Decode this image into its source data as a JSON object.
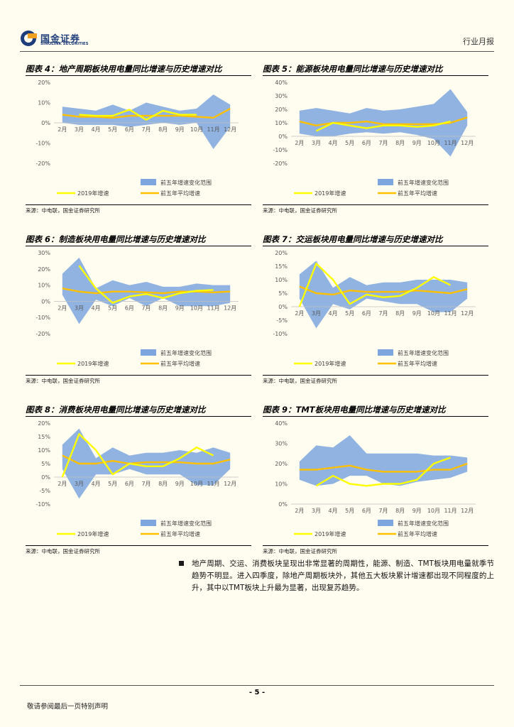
{
  "header": {
    "logo_cn": "国金证券",
    "logo_en": "SINOLINK SECURITIES",
    "report_type": "行业月报"
  },
  "legend": {
    "range": "前五年增速变化范围",
    "current": "2019年增速",
    "avg": "前五年平均增速"
  },
  "colors": {
    "range_fill": "#7ea6de",
    "current_line": "#ffff00",
    "avg_line": "#ffc000"
  },
  "charts": [
    {
      "title": "图表 4：地产周期板块用电量同比增速与历史增速对比",
      "source": "来源：中电联，国金证券研究所",
      "chart_data": {
        "type": "area",
        "categories": [
          "2月",
          "3月",
          "4月",
          "5月",
          "6月",
          "7月",
          "8月",
          "9月",
          "10月",
          "11月",
          "12月"
        ],
        "ylim": [
          -20,
          20
        ],
        "y_ticks": [
          -20,
          -10,
          0,
          10,
          20
        ],
        "tick_format": "percent",
        "range_max": [
          8,
          7,
          6,
          9,
          6,
          10,
          8,
          6,
          7,
          14,
          9
        ],
        "range_min": [
          0,
          -1,
          -1,
          -1,
          -2,
          -1,
          0,
          -1,
          0,
          -13,
          -2
        ],
        "current": [
          null,
          4,
          3.5,
          3.5,
          6.5,
          1.5,
          6,
          4,
          4,
          null,
          null
        ],
        "avg": [
          4,
          3,
          3,
          2.5,
          3.5,
          3.5,
          3.5,
          3.5,
          3,
          2.5,
          7
        ]
      }
    },
    {
      "title": "图表 5：能源板块用电量同比增速与历史增速对比",
      "source": "来源：中电联，国金证券研究所",
      "chart_data": {
        "type": "area",
        "categories": [
          "2月",
          "3月",
          "4月",
          "5月",
          "6月",
          "7月",
          "8月",
          "9月",
          "10月",
          "11月",
          "12月"
        ],
        "ylim": [
          -20,
          40
        ],
        "y_ticks": [
          -20,
          -10,
          0,
          10,
          20,
          30,
          40
        ],
        "tick_format": "percent",
        "range_max": [
          19,
          21,
          19,
          17,
          21,
          19,
          20,
          22,
          24,
          35,
          18
        ],
        "range_min": [
          2,
          0,
          0,
          2,
          3,
          2,
          3,
          1,
          -2,
          -15,
          8
        ],
        "current": [
          null,
          4,
          10,
          8,
          6,
          8,
          8,
          7,
          8,
          11,
          null
        ],
        "avg": [
          11,
          8,
          10,
          10,
          11,
          9,
          9,
          9,
          9,
          10,
          14
        ]
      }
    },
    {
      "title": "图表 6：制造板块用电量同比增速与历史增速对比",
      "source": "来源：中电联，国金证券研究所",
      "chart_data": {
        "type": "area",
        "categories": [
          "2月",
          "3月",
          "4月",
          "5月",
          "6月",
          "7月",
          "8月",
          "9月",
          "10月",
          "11月",
          "12月"
        ],
        "ylim": [
          -20,
          30
        ],
        "y_ticks": [
          -20,
          -10,
          0,
          10,
          20,
          30
        ],
        "tick_format": "percent",
        "range_max": [
          17,
          27,
          8,
          13,
          10,
          12,
          9,
          9,
          11,
          10,
          10
        ],
        "range_min": [
          4,
          -14,
          1,
          -3,
          2,
          -3,
          2,
          -3,
          -3,
          -3,
          -1
        ],
        "current": [
          null,
          22,
          8,
          -1,
          3,
          4.5,
          2,
          5,
          6.5,
          7,
          null
        ],
        "avg": [
          8,
          6,
          5,
          6,
          6,
          5.5,
          5,
          6,
          6,
          5.5,
          6
        ]
      }
    },
    {
      "title": "图表 7：交运板块用电量同比增速与历史增速对比",
      "source": "来源：中电联，国金证券研究所",
      "chart_data": {
        "type": "area",
        "categories": [
          "2月",
          "3月",
          "4月",
          "5月",
          "6月",
          "7月",
          "8月",
          "9月",
          "10月",
          "11月",
          "12月"
        ],
        "ylim": [
          -10,
          20
        ],
        "y_ticks": [
          -10,
          -5,
          0,
          5,
          10,
          15,
          20
        ],
        "tick_format": "percent",
        "range_max": [
          12,
          17,
          7,
          11,
          8,
          9,
          9,
          10,
          10,
          10,
          9
        ],
        "range_min": [
          3,
          -8,
          1,
          -1,
          3,
          2,
          1,
          1,
          -2,
          -2,
          3
        ],
        "current": [
          0,
          16,
          10,
          1,
          4.5,
          3.5,
          4,
          7,
          11,
          8,
          null
        ],
        "avg": [
          7.5,
          5,
          4.5,
          6,
          5.5,
          5.5,
          5.5,
          6,
          5.5,
          5,
          6.5
        ]
      }
    },
    {
      "title": "图表 8：消费板块用电量同比增速与历史增速对比",
      "source": "来源：中电联，国金证券研究所",
      "chart_data": {
        "type": "area",
        "categories": [
          "2月",
          "3月",
          "4月",
          "5月",
          "6月",
          "7月",
          "8月",
          "9月",
          "10月",
          "11月",
          "12月"
        ],
        "ylim": [
          -10,
          20
        ],
        "y_ticks": [
          -10,
          -5,
          0,
          5,
          10,
          15,
          20
        ],
        "tick_format": "percent",
        "range_max": [
          12,
          18,
          7,
          11,
          8,
          9,
          9,
          10,
          9,
          11,
          9
        ],
        "range_min": [
          3,
          -8,
          1,
          1,
          3,
          1,
          1,
          1,
          -3,
          -3,
          3
        ],
        "current": [
          0,
          16,
          10,
          1,
          5,
          4,
          4,
          7,
          11,
          8,
          null
        ],
        "avg": [
          8,
          5,
          5,
          6,
          5,
          5.5,
          5.5,
          5.5,
          5,
          5,
          6.5
        ]
      }
    },
    {
      "title": "图表 9：TMT板块用电量同比增速与历史增速对比",
      "source": "来源：中电联，国金证券研究所",
      "chart_data": {
        "type": "area",
        "categories": [
          "2月",
          "3月",
          "4月",
          "5月",
          "6月",
          "7月",
          "8月",
          "9月",
          "10月",
          "11月",
          "12月"
        ],
        "ylim": [
          0,
          40
        ],
        "y_ticks": [
          0,
          10,
          20,
          30,
          40
        ],
        "tick_format": "percent",
        "range_max": [
          21,
          29,
          28,
          34,
          25,
          25,
          25,
          25,
          24,
          24,
          23
        ],
        "range_min": [
          12,
          9,
          10,
          14,
          14,
          10,
          9,
          11,
          12,
          13,
          16
        ],
        "current": [
          null,
          9,
          14,
          10,
          9,
          10,
          10,
          12,
          20,
          23,
          null
        ],
        "avg": [
          17,
          17,
          18,
          19,
          17,
          16,
          16,
          16,
          17,
          17,
          20
        ]
      }
    }
  ],
  "body_text": "地产周期、交运、消费板块呈现出非常显著的周期性，能源、制造、TMT板块用电量就季节趋势不明显。进入四季度，除地产周期板块外，其他五大板块累计增速都出现不同程度的上升，其中以TMT板块上升最为显著，出现复苏趋势。",
  "footer": {
    "page": "- 5 -",
    "disclaimer": "敬请参阅最后一页特别声明"
  }
}
